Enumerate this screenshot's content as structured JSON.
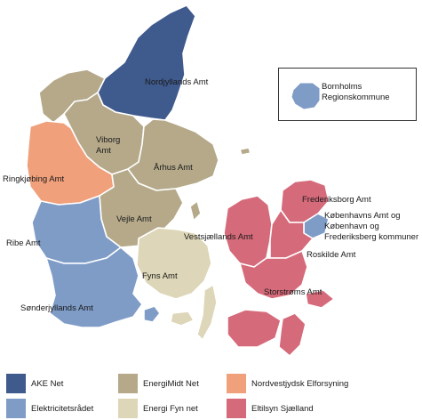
{
  "colors": {
    "ake_net": "#3f5a8c",
    "energimidt": "#b5a98a",
    "nve": "#f0a07a",
    "elektricitetsraadet": "#7f9cc7",
    "energi_fyn": "#ddd6b8",
    "eltilsyn_sjaelland": "#d56a7a"
  },
  "regions": {
    "nordjyllands": "Nordjyllands Amt",
    "viborg_1": "Viborg",
    "viborg_2": "Amt",
    "ringkobing": "Ringkjøbing Amt",
    "aarhus": "Århus Amt",
    "vejle": "Vejle Amt",
    "ribe": "Ribe Amt",
    "sonderjyllands": "Sønderjyllands Amt",
    "fyns": "Fyns Amt",
    "vestsjaellands": "Vestsjællands Amt",
    "frederiksborg": "Frederiksborg Amt",
    "kobenhavn_1": "Københavns Amt og",
    "kobenhavn_2": "København og",
    "kobenhavn_3": "Frederiksberg kommuner",
    "roskilde": "Roskilde Amt",
    "storstroms": "Storstrøms Amt"
  },
  "inset": {
    "line1": "Bornholms",
    "line2": "Regionskommune"
  },
  "legend": [
    {
      "label": "AKE Net",
      "color": "#3f5a8c"
    },
    {
      "label": "EnergiMidt Net",
      "color": "#b5a98a"
    },
    {
      "label": "Nordvestjydsk Elforsyning",
      "color": "#f0a07a"
    },
    {
      "label": "Elektricitetsrådet",
      "color": "#7f9cc7"
    },
    {
      "label": "Energi Fyn net",
      "color": "#ddd6b8"
    },
    {
      "label": "Eltilsyn Sjælland",
      "color": "#d56a7a"
    }
  ]
}
